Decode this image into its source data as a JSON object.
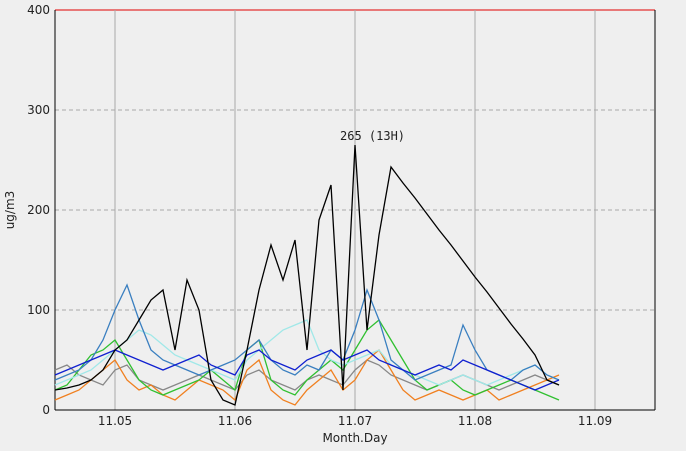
{
  "chart_data": {
    "type": "line",
    "xlabel": "Month.Day",
    "ylabel": "ug/m3",
    "annotation": "265 (13H)",
    "x": [
      4.5,
      4.6,
      4.7,
      4.8,
      4.9,
      5.0,
      5.1,
      5.2,
      5.3,
      5.4,
      5.5,
      5.6,
      5.7,
      5.8,
      5.9,
      6.0,
      6.1,
      6.2,
      6.3,
      6.4,
      6.5,
      6.6,
      6.7,
      6.8,
      6.9,
      7.0,
      7.1,
      7.2,
      7.3,
      7.4,
      7.5,
      7.6,
      7.7,
      7.8,
      7.9,
      8.0,
      8.1,
      8.2,
      8.3,
      8.4,
      8.5,
      8.6,
      8.7
    ],
    "xlim": [
      4.5,
      9.5
    ],
    "xticks": [
      {
        "value": 5,
        "label": "11.05"
      },
      {
        "value": 6,
        "label": "11.06"
      },
      {
        "value": 7,
        "label": "11.07"
      },
      {
        "value": 8,
        "label": "11.08"
      },
      {
        "value": 9,
        "label": "11.09"
      }
    ],
    "ylim": [
      0,
      400
    ],
    "yticks": [
      0,
      100,
      200,
      300,
      400
    ],
    "grid": true,
    "series": [
      {
        "color": "#888888",
        "values": [
          40,
          45,
          35,
          30,
          25,
          40,
          45,
          30,
          25,
          20,
          25,
          30,
          35,
          30,
          25,
          20,
          35,
          40,
          30,
          25,
          20,
          30,
          35,
          30,
          25,
          40,
          50,
          45,
          35,
          30,
          25,
          20,
          25,
          30,
          35,
          30,
          25,
          20,
          25,
          30,
          35,
          30,
          25
        ]
      },
      {
        "color": "#f08020",
        "values": [
          10,
          15,
          20,
          30,
          40,
          50,
          30,
          20,
          25,
          15,
          10,
          20,
          30,
          25,
          20,
          10,
          40,
          50,
          20,
          10,
          5,
          20,
          30,
          40,
          20,
          30,
          50,
          60,
          40,
          20,
          10,
          15,
          20,
          15,
          10,
          15,
          20,
          10,
          15,
          20,
          25,
          30,
          35
        ]
      },
      {
        "color": "#30c030",
        "values": [
          20,
          25,
          40,
          55,
          60,
          70,
          50,
          30,
          20,
          15,
          20,
          25,
          30,
          40,
          30,
          20,
          60,
          70,
          30,
          20,
          15,
          30,
          40,
          50,
          40,
          60,
          80,
          90,
          70,
          50,
          30,
          20,
          25,
          30,
          20,
          15,
          20,
          25,
          30,
          25,
          20,
          15,
          10
        ]
      },
      {
        "color": "#a0e8e8",
        "values": [
          25,
          30,
          35,
          40,
          50,
          60,
          70,
          80,
          75,
          65,
          55,
          50,
          45,
          40,
          35,
          30,
          50,
          60,
          70,
          80,
          85,
          90,
          60,
          50,
          45,
          50,
          55,
          60,
          45,
          40,
          35,
          30,
          25,
          30,
          35,
          30,
          25,
          30,
          35,
          40,
          45,
          35,
          30
        ]
      },
      {
        "color": "#3a7fc0",
        "values": [
          30,
          35,
          40,
          50,
          70,
          100,
          125,
          90,
          60,
          50,
          45,
          40,
          35,
          40,
          45,
          50,
          60,
          70,
          50,
          40,
          35,
          45,
          40,
          60,
          50,
          80,
          120,
          90,
          50,
          40,
          30,
          35,
          40,
          45,
          85,
          60,
          40,
          35,
          30,
          40,
          45,
          35,
          30
        ]
      },
      {
        "color": "#1020d0",
        "values": [
          35,
          40,
          45,
          50,
          55,
          60,
          55,
          50,
          45,
          40,
          45,
          50,
          55,
          45,
          40,
          35,
          55,
          60,
          50,
          45,
          40,
          50,
          55,
          60,
          50,
          55,
          60,
          50,
          45,
          40,
          35,
          40,
          45,
          40,
          50,
          45,
          40,
          35,
          30,
          25,
          20,
          25,
          30
        ]
      },
      {
        "color": "#000000",
        "values": [
          20,
          22,
          25,
          30,
          40,
          60,
          70,
          90,
          110,
          120,
          60,
          130,
          100,
          30,
          10,
          5,
          60,
          120,
          165,
          130,
          170,
          60,
          190,
          225,
          20,
          265,
          80,
          175,
          243,
          227,
          212,
          196,
          180,
          165,
          149,
          133,
          118,
          102,
          86,
          71,
          55,
          30,
          25
        ]
      }
    ]
  }
}
